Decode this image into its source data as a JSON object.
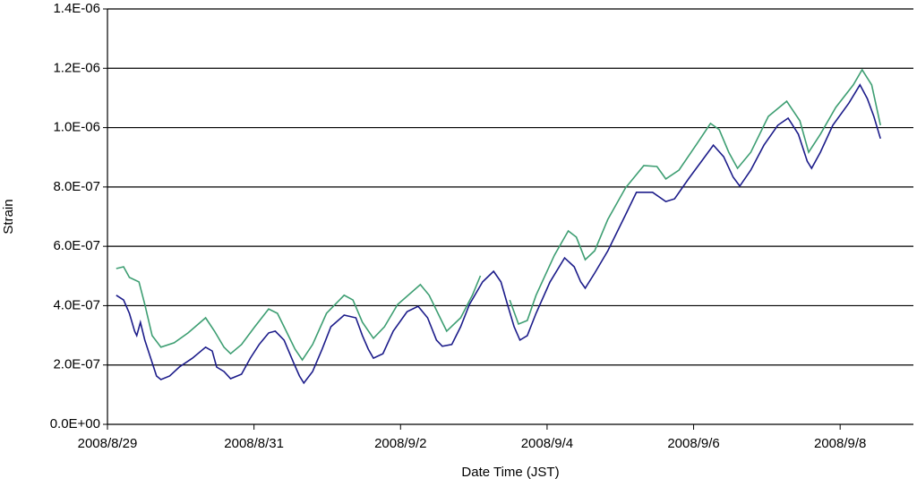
{
  "chart_data": {
    "type": "line",
    "x_label": "Date Time (JST)",
    "y_label": "Strain",
    "xlim": [
      0,
      11
    ],
    "xticks": [
      {
        "value": 0,
        "label": "2008/8/29"
      },
      {
        "value": 2,
        "label": "2008/8/31"
      },
      {
        "value": 4,
        "label": "2008/9/2"
      },
      {
        "value": 6,
        "label": "2008/9/4"
      },
      {
        "value": 8,
        "label": "2008/9/6"
      },
      {
        "value": 10,
        "label": "2008/9/8"
      }
    ],
    "ylim": [
      0,
      1.4e-06
    ],
    "yticks": [
      {
        "value": 0,
        "label": "0.0E+00"
      },
      {
        "value": 2e-07,
        "label": "2.0E-07"
      },
      {
        "value": 4e-07,
        "label": "4.0E-07"
      },
      {
        "value": 6e-07,
        "label": "6.0E-07"
      },
      {
        "value": 8e-07,
        "label": "8.0E-07"
      },
      {
        "value": 1e-06,
        "label": "1.0E-06"
      },
      {
        "value": 1.2e-06,
        "label": "1.2E-06"
      },
      {
        "value": 1.4e-06,
        "label": "1.4E-06"
      }
    ],
    "grid": true,
    "series": [
      {
        "color": "#3d9e72",
        "x": [
          0.12,
          0.22,
          0.3,
          0.43,
          0.51,
          0.61,
          0.73,
          0.91,
          1.1,
          1.34,
          1.46,
          1.59,
          1.68,
          1.83,
          2.01,
          2.2,
          2.32,
          2.44,
          2.56,
          2.66,
          2.8,
          2.99,
          3.23,
          3.35,
          3.48,
          3.63,
          3.78,
          3.96,
          4.27,
          4.39,
          4.54,
          4.63,
          4.82,
          4.98,
          5.09,
          5.3,
          5.49,
          5.61,
          5.73,
          5.85,
          6.1,
          6.29,
          6.4,
          6.52,
          6.65,
          6.83,
          7.07,
          7.32,
          7.5,
          7.62,
          7.8,
          8.05,
          8.23,
          8.35,
          8.48,
          8.6,
          8.78,
          9.02,
          9.27,
          9.45,
          9.57,
          9.73,
          9.94,
          10.18,
          10.3,
          10.43,
          10.55
        ],
        "values": [
          5.25e-07,
          5.31e-07,
          4.95e-07,
          4.8e-07,
          4.04e-07,
          2.99e-07,
          2.6e-07,
          2.75e-07,
          3.08e-07,
          3.59e-07,
          3.14e-07,
          2.6e-07,
          2.38e-07,
          2.69e-07,
          3.29e-07,
          3.89e-07,
          3.74e-07,
          3.14e-07,
          2.53e-07,
          2.17e-07,
          2.69e-07,
          3.74e-07,
          4.35e-07,
          4.19e-07,
          3.44e-07,
          2.9e-07,
          3.29e-07,
          4.04e-07,
          4.71e-07,
          4.35e-07,
          3.59e-07,
          3.14e-07,
          3.59e-07,
          4.35e-07,
          5.01e-07,
          null,
          4.19e-07,
          3.38e-07,
          3.5e-07,
          4.35e-07,
          5.7e-07,
          6.52e-07,
          6.31e-07,
          5.55e-07,
          5.85e-07,
          6.91e-07,
          7.97e-07,
          8.72e-07,
          8.69e-07,
          8.27e-07,
          8.57e-07,
          9.47e-07,
          1.014e-06,
          9.93e-07,
          9.17e-07,
          8.63e-07,
          9.17e-07,
          1.038e-06,
          1.089e-06,
          1.023e-06,
          9.17e-07,
          9.78e-07,
          1.068e-06,
          1.144e-06,
          1.195e-06,
          1.144e-06,
          1.008e-06
        ]
      },
      {
        "color": "#1c1c8a",
        "x": [
          0.12,
          0.22,
          0.3,
          0.37,
          0.4,
          0.45,
          0.51,
          0.59,
          0.67,
          0.73,
          0.85,
          0.98,
          1.16,
          1.34,
          1.43,
          1.49,
          1.59,
          1.68,
          1.83,
          1.95,
          2.07,
          2.2,
          2.29,
          2.41,
          2.54,
          2.62,
          2.68,
          2.8,
          2.93,
          3.05,
          3.23,
          3.39,
          3.48,
          3.56,
          3.63,
          3.76,
          3.9,
          4.09,
          4.24,
          4.37,
          4.49,
          4.57,
          4.7,
          4.82,
          4.94,
          5.12,
          5.27,
          5.37,
          5.46,
          5.55,
          5.63,
          5.73,
          5.85,
          6.04,
          6.24,
          6.37,
          6.46,
          6.52,
          6.65,
          6.83,
          7.07,
          7.22,
          7.44,
          7.62,
          7.74,
          7.93,
          8.11,
          8.27,
          8.41,
          8.54,
          8.63,
          8.78,
          8.96,
          9.15,
          9.29,
          9.43,
          9.55,
          9.61,
          9.73,
          9.9,
          10.12,
          10.27,
          10.37,
          10.46,
          10.55
        ],
        "values": [
          4.35e-07,
          4.19e-07,
          3.74e-07,
          3.14e-07,
          2.99e-07,
          3.44e-07,
          2.84e-07,
          2.23e-07,
          1.63e-07,
          1.51e-07,
          1.63e-07,
          1.93e-07,
          2.23e-07,
          2.6e-07,
          2.47e-07,
          1.93e-07,
          1.78e-07,
          1.54e-07,
          1.69e-07,
          2.23e-07,
          2.69e-07,
          3.08e-07,
          3.14e-07,
          2.84e-07,
          2.08e-07,
          1.63e-07,
          1.39e-07,
          1.78e-07,
          2.53e-07,
          3.29e-07,
          3.68e-07,
          3.59e-07,
          2.99e-07,
          2.53e-07,
          2.23e-07,
          2.38e-07,
          3.14e-07,
          3.8e-07,
          3.98e-07,
          3.59e-07,
          2.84e-07,
          2.63e-07,
          2.69e-07,
          3.29e-07,
          4.04e-07,
          4.8e-07,
          5.16e-07,
          4.8e-07,
          4.04e-07,
          3.29e-07,
          2.84e-07,
          2.99e-07,
          3.74e-07,
          4.8e-07,
          5.61e-07,
          5.31e-07,
          4.8e-07,
          4.59e-07,
          5.1e-07,
          5.85e-07,
          7.06e-07,
          7.82e-07,
          7.82e-07,
          7.51e-07,
          7.6e-07,
          8.27e-07,
          8.87e-07,
          9.41e-07,
          9.02e-07,
          8.33e-07,
          8.03e-07,
          8.57e-07,
          9.41e-07,
          1.008e-06,
          1.032e-06,
          9.78e-07,
          8.87e-07,
          8.63e-07,
          9.17e-07,
          1.008e-06,
          1.083e-06,
          1.144e-06,
          1.098e-06,
          1.038e-06,
          9.63e-07
        ]
      }
    ]
  }
}
